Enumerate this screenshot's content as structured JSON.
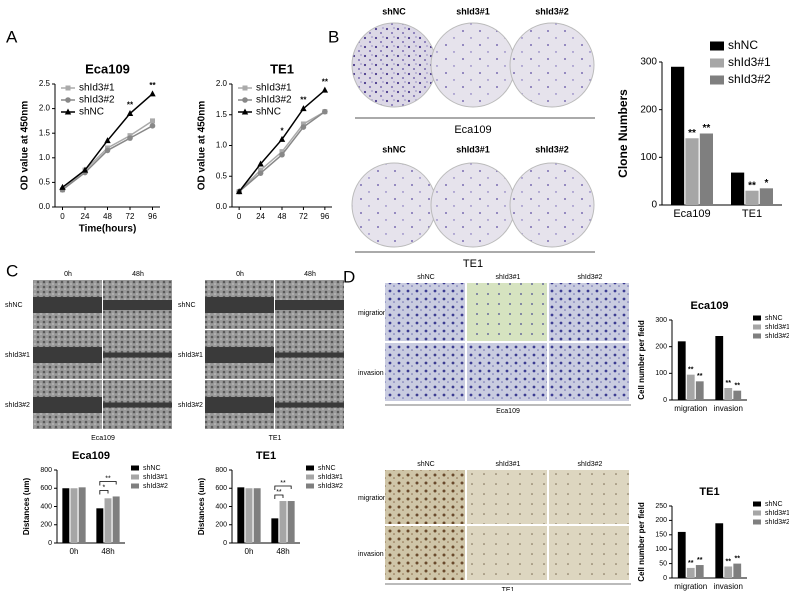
{
  "panel_labels": [
    "A",
    "B",
    "C",
    "D"
  ],
  "plates": {
    "columns": [
      "shNC",
      "shId3#1",
      "shId3#2"
    ],
    "rows": [
      "Eca109",
      "TE1"
    ]
  },
  "wound": [
    {
      "columns": [
        "0h",
        "48h"
      ],
      "rows": [
        "shNC",
        "shId3#1",
        "shId3#2"
      ],
      "caption": "Eca109"
    },
    {
      "columns": [
        "0h",
        "48h"
      ],
      "rows": [
        "shNC",
        "shId3#1",
        "shId3#2"
      ],
      "caption": "TE1"
    }
  ],
  "transwell": [
    {
      "columns": [
        "shNC",
        "shId3#1",
        "shId3#2"
      ],
      "rows": [
        "migration",
        "invasion"
      ],
      "caption": "Eca109"
    },
    {
      "columns": [
        "shNC",
        "shId3#1",
        "shId3#2"
      ],
      "rows": [
        "migration",
        "invasion"
      ],
      "caption": "TE1"
    }
  ],
  "chart_data": [
    {
      "type": "line",
      "title": "Eca109",
      "x": [
        0,
        24,
        48,
        72,
        96
      ],
      "xlim": [
        -8,
        104
      ],
      "xticks": [
        0,
        24,
        48,
        72,
        96
      ],
      "xlabel": "Time(hours)",
      "ylabel": "OD value at 450nm",
      "ylim": [
        0,
        2.5
      ],
      "yticks": [
        {
          "value": 0,
          "label": "0.0"
        },
        0.5,
        {
          "value": 1,
          "label": "1.0"
        },
        1.5,
        {
          "value": 2,
          "label": "2.0"
        },
        2.5
      ],
      "legend": "upper left",
      "series": [
        {
          "name": "shId3#1",
          "color": "#aaaaaa",
          "marker": "square",
          "values": [
            0.35,
            0.75,
            1.2,
            1.45,
            1.75
          ]
        },
        {
          "name": "shId3#2",
          "color": "#888888",
          "marker": "circle",
          "values": [
            0.35,
            0.7,
            1.15,
            1.4,
            1.65
          ]
        },
        {
          "name": "shNC",
          "color": "#000000",
          "marker": "triangle",
          "values": [
            0.4,
            0.75,
            1.35,
            1.9,
            2.3
          ]
        }
      ],
      "annotations": [
        {
          "text": "**",
          "x": 72
        },
        {
          "text": "**",
          "x": 96
        }
      ]
    },
    {
      "type": "line",
      "title": "TE1",
      "x": [
        0,
        24,
        48,
        72,
        96
      ],
      "xlim": [
        -8,
        104
      ],
      "xticks": [
        0,
        24,
        48,
        72,
        96
      ],
      "ylabel": "OD value at 450nm",
      "ylim": [
        0,
        2
      ],
      "yticks": [
        {
          "value": 0,
          "label": "0.0"
        },
        0.5,
        {
          "value": 1,
          "label": "1.0"
        },
        1.5,
        {
          "value": 2,
          "label": "2.0"
        }
      ],
      "legend": "upper left",
      "series": [
        {
          "name": "shId3#1",
          "color": "#aaaaaa",
          "marker": "square",
          "values": [
            0.25,
            0.6,
            0.9,
            1.35,
            1.55
          ]
        },
        {
          "name": "shId3#2",
          "color": "#888888",
          "marker": "circle",
          "values": [
            0.25,
            0.55,
            0.85,
            1.3,
            1.55
          ]
        },
        {
          "name": "shNC",
          "color": "#000000",
          "marker": "triangle",
          "values": [
            0.25,
            0.7,
            1.1,
            1.6,
            1.9
          ]
        }
      ],
      "annotations": [
        {
          "text": "*",
          "x": 48
        },
        {
          "text": "**",
          "x": 72
        },
        {
          "text": "**",
          "x": 96
        }
      ]
    },
    {
      "type": "bar",
      "ylabel": "Clone Numbers",
      "categories": [
        "Eca109",
        "TE1"
      ],
      "ylim": [
        0,
        300
      ],
      "yticks": [
        0,
        100,
        200,
        300
      ],
      "legend": "upper right",
      "series": [
        {
          "name": "shNC",
          "color": "#000000",
          "values": [
            290,
            68
          ]
        },
        {
          "name": "shId3#1",
          "color": "#a6a6a6",
          "values": [
            140,
            30
          ]
        },
        {
          "name": "shId3#2",
          "color": "#7f7f7f",
          "values": [
            150,
            35
          ]
        }
      ],
      "annotations": [
        {
          "text": "**",
          "category": "Eca109",
          "series": "shId3#1"
        },
        {
          "text": "**",
          "category": "Eca109",
          "series": "shId3#2"
        },
        {
          "text": "**",
          "category": "TE1",
          "series": "shId3#1"
        },
        {
          "text": "*",
          "category": "TE1",
          "series": "shId3#2"
        }
      ]
    },
    {
      "type": "bar",
      "title": "Eca109",
      "ylabel": "Distances (um)",
      "categories": [
        "0h",
        "48h"
      ],
      "ylim": [
        0,
        800
      ],
      "yticks": [
        0,
        200,
        400,
        600,
        800
      ],
      "legend": "right",
      "series": [
        {
          "name": "shNC",
          "color": "#000000",
          "values": [
            600,
            380
          ]
        },
        {
          "name": "shId3#1",
          "color": "#a6a6a6",
          "values": [
            600,
            490
          ]
        },
        {
          "name": "shId3#2",
          "color": "#7f7f7f",
          "values": [
            610,
            510
          ]
        }
      ],
      "annotations": [
        {
          "text": "*",
          "category": "48h",
          "from": "shNC",
          "to": "shId3#1"
        },
        {
          "text": "**",
          "category": "48h",
          "from": "shNC",
          "to": "shId3#2"
        }
      ]
    },
    {
      "type": "bar",
      "title": "TE1",
      "ylabel": "Distances (um)",
      "categories": [
        "0h",
        "48h"
      ],
      "ylim": [
        0,
        800
      ],
      "yticks": [
        0,
        200,
        400,
        600,
        800
      ],
      "legend": "right",
      "series": [
        {
          "name": "shNC",
          "color": "#000000",
          "values": [
            610,
            270
          ]
        },
        {
          "name": "shId3#1",
          "color": "#a6a6a6",
          "values": [
            600,
            460
          ]
        },
        {
          "name": "shId3#2",
          "color": "#7f7f7f",
          "values": [
            600,
            460
          ]
        }
      ],
      "annotations": [
        {
          "text": "**",
          "category": "48h",
          "from": "shNC",
          "to": "shId3#1"
        },
        {
          "text": "**",
          "category": "48h",
          "from": "shNC",
          "to": "shId3#2"
        }
      ]
    },
    {
      "type": "bar",
      "title": "Eca109",
      "ylabel": "Cell number per field",
      "categories": [
        "migration",
        "invasion"
      ],
      "ylim": [
        0,
        300
      ],
      "yticks": [
        0,
        100,
        200,
        300
      ],
      "legend": "right",
      "series": [
        {
          "name": "shNC",
          "color": "#000000",
          "values": [
            220,
            240
          ]
        },
        {
          "name": "shId3#1",
          "color": "#a6a6a6",
          "values": [
            95,
            45
          ]
        },
        {
          "name": "shId3#2",
          "color": "#7f7f7f",
          "values": [
            70,
            35
          ]
        }
      ],
      "annotations": [
        {
          "text": "**",
          "category": "migration",
          "series": "shId3#1"
        },
        {
          "text": "**",
          "category": "migration",
          "series": "shId3#2"
        },
        {
          "text": "**",
          "category": "invasion",
          "series": "shId3#1"
        },
        {
          "text": "**",
          "category": "invasion",
          "series": "shId3#2"
        }
      ]
    },
    {
      "type": "bar",
      "title": "TE1",
      "ylabel": "Cell number per field",
      "categories": [
        "migration",
        "invasion"
      ],
      "ylim": [
        0,
        250
      ],
      "yticks": [
        0,
        50,
        100,
        150,
        200,
        250
      ],
      "legend": "right",
      "series": [
        {
          "name": "shNC",
          "color": "#000000",
          "values": [
            160,
            190
          ]
        },
        {
          "name": "shId3#1",
          "color": "#a6a6a6",
          "values": [
            35,
            40
          ]
        },
        {
          "name": "shId3#2",
          "color": "#7f7f7f",
          "values": [
            45,
            50
          ]
        }
      ],
      "annotations": [
        {
          "text": "**",
          "category": "migration",
          "series": "shId3#1"
        },
        {
          "text": "**",
          "category": "migration",
          "series": "shId3#2"
        },
        {
          "text": "**",
          "category": "invasion",
          "series": "shId3#1"
        },
        {
          "text": "**",
          "category": "invasion",
          "series": "shId3#2"
        }
      ]
    }
  ]
}
